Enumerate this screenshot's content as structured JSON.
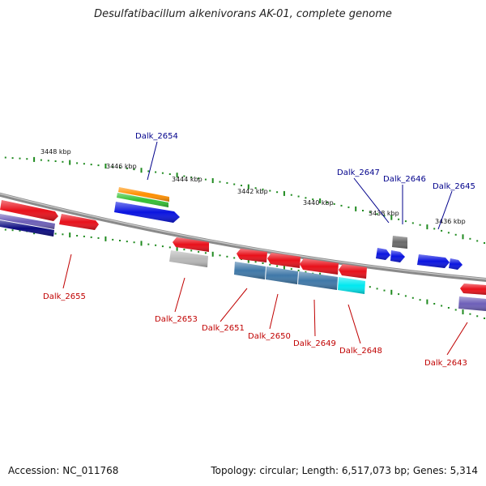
{
  "title": "Desulfatibacillum alkenivorans AK-01, complete genome",
  "footer": {
    "accession": "Accession: NC_011768",
    "summary": "Topology: circular; Length: 6,517,073 bp; Genes: 5,314"
  },
  "colors": {
    "backbone": "#8a8a8a",
    "tick": "#1f8a1f",
    "label_forward": "#00008b",
    "label_reverse": "#c00000",
    "red_gene": "#e8101a",
    "blue_gene": "#0a14e0",
    "steel_gene": "#3f78a8",
    "cyan_gene": "#00e8f0",
    "navy_gene": "#0a0a80",
    "slate_gene": "#6d5fb8",
    "gray_gene": "#b8b8b8",
    "dark_gray_gene": "#6a6a6a",
    "orange_gene": "#ff9000",
    "green_gene": "#33c033"
  },
  "scale_labels": [
    "3448 kbp",
    "3446 kbp",
    "3444 kbp",
    "3442 kbp",
    "3440 kbp",
    "3438 kbp",
    "3436 kbp"
  ],
  "gene_labels": [
    {
      "text": "Dalk_2654",
      "strand": "forward"
    },
    {
      "text": "Dalk_2647",
      "strand": "forward"
    },
    {
      "text": "Dalk_2646",
      "strand": "forward"
    },
    {
      "text": "Dalk_2645",
      "strand": "forward"
    },
    {
      "text": "Dalk_2655",
      "strand": "reverse"
    },
    {
      "text": "Dalk_2653",
      "strand": "reverse"
    },
    {
      "text": "Dalk_2651",
      "strand": "reverse"
    },
    {
      "text": "Dalk_2650",
      "strand": "reverse"
    },
    {
      "text": "Dalk_2649",
      "strand": "reverse"
    },
    {
      "text": "Dalk_2648",
      "strand": "reverse"
    },
    {
      "text": "Dalk_2643",
      "strand": "reverse"
    }
  ]
}
